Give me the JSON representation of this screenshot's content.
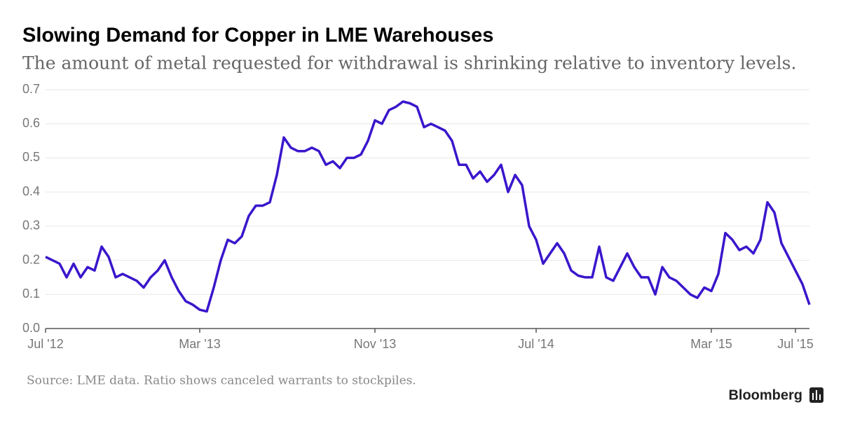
{
  "chart_data": {
    "type": "line",
    "title": "Slowing Demand for Copper in LME Warehouses",
    "subtitle": "The amount of metal requested for withdrawal is shrinking relative to inventory levels.",
    "source": "Source: LME data. Ratio shows canceled warrants to stockpiles.",
    "brand": "Bloomberg",
    "color": "#3a16cc",
    "categories": [
      "Jul '12",
      null,
      null,
      null,
      null,
      null,
      null,
      null,
      null,
      null,
      null,
      null,
      null,
      null,
      null,
      null,
      null,
      null,
      null,
      null,
      null,
      null,
      "Mar '13",
      null,
      null,
      null,
      null,
      null,
      null,
      null,
      null,
      null,
      null,
      null,
      null,
      null,
      null,
      null,
      null,
      null,
      null,
      null,
      null,
      null,
      null,
      null,
      null,
      "Nov '13",
      null,
      null,
      null,
      null,
      null,
      null,
      null,
      null,
      null,
      null,
      null,
      null,
      null,
      null,
      null,
      null,
      null,
      null,
      null,
      null,
      null,
      null,
      "Jul '14",
      null,
      null,
      null,
      null,
      null,
      null,
      null,
      null,
      null,
      null,
      null,
      null,
      null,
      null,
      null,
      null,
      null,
      null,
      null,
      null,
      null,
      null,
      null,
      null,
      "Mar '15",
      null,
      null,
      null,
      null,
      null,
      null,
      null,
      null,
      null,
      null,
      null,
      "Jul '15",
      null,
      null
    ],
    "values": [
      0.21,
      0.2,
      0.19,
      0.15,
      0.19,
      0.15,
      0.18,
      0.17,
      0.24,
      0.21,
      0.15,
      0.16,
      0.15,
      0.14,
      0.12,
      0.15,
      0.17,
      0.2,
      0.15,
      0.11,
      0.08,
      0.07,
      0.055,
      0.05,
      0.12,
      0.2,
      0.26,
      0.25,
      0.27,
      0.33,
      0.36,
      0.36,
      0.37,
      0.45,
      0.56,
      0.53,
      0.52,
      0.52,
      0.53,
      0.52,
      0.48,
      0.49,
      0.47,
      0.5,
      0.5,
      0.51,
      0.55,
      0.61,
      0.6,
      0.64,
      0.65,
      0.665,
      0.66,
      0.65,
      0.59,
      0.6,
      0.59,
      0.58,
      0.55,
      0.48,
      0.48,
      0.44,
      0.46,
      0.43,
      0.45,
      0.48,
      0.4,
      0.45,
      0.42,
      0.3,
      0.26,
      0.19,
      0.22,
      0.25,
      0.22,
      0.17,
      0.155,
      0.15,
      0.15,
      0.24,
      0.15,
      0.14,
      0.18,
      0.22,
      0.18,
      0.15,
      0.15,
      0.1,
      0.18,
      0.15,
      0.14,
      0.12,
      0.1,
      0.09,
      0.12,
      0.11,
      0.16,
      0.28,
      0.26,
      0.23,
      0.24,
      0.22,
      0.26,
      0.37,
      0.34,
      0.25,
      0.21,
      0.17,
      0.13,
      0.07
    ],
    "ylim": [
      0,
      0.7
    ],
    "yticks": [
      {
        "value": 0,
        "label": "0.0"
      },
      0.1,
      0.2,
      0.3,
      0.4,
      0.5,
      0.6,
      0.7
    ],
    "grid": true
  }
}
